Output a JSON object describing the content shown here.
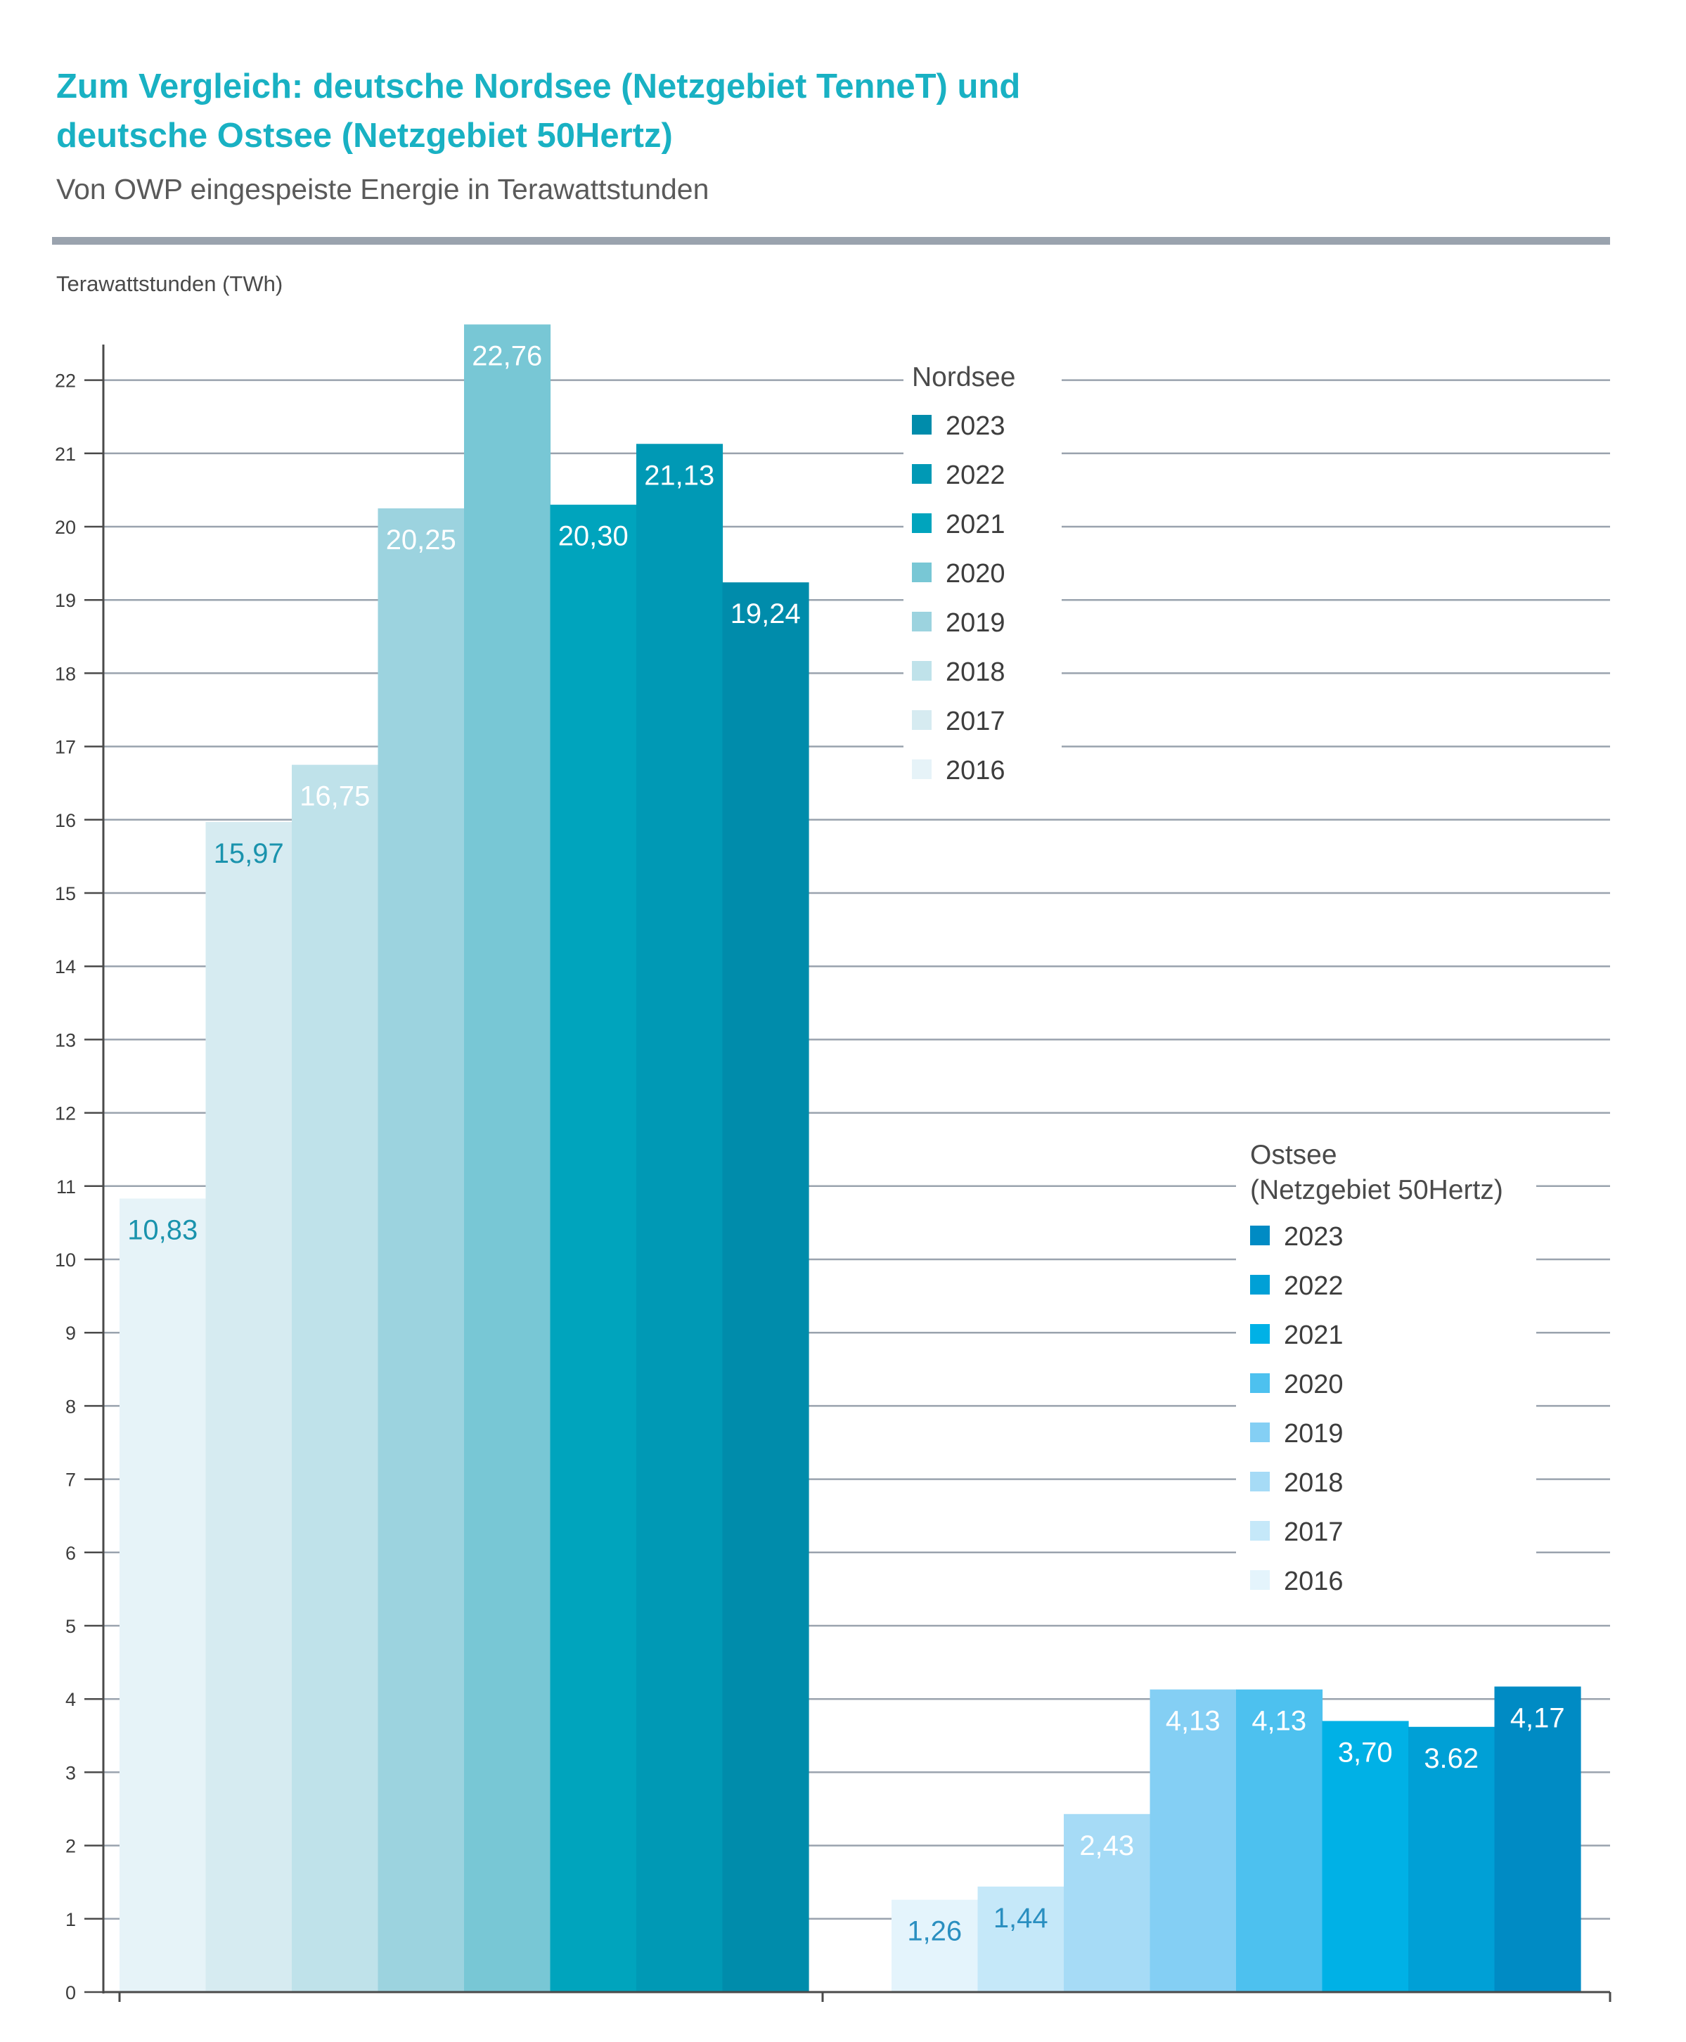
{
  "header": {
    "title_line1": "Zum Vergleich: deutsche Nordsee (Netzgebiet TenneT) und",
    "title_line2": "deutsche Ostsee (Netzgebiet 50Hertz)",
    "subtitle": "Von OWP eingespeiste Energie in Terawattstunden"
  },
  "chart_data": {
    "type": "bar",
    "ylabel": "Terawattstunden (TWh)",
    "ylim": [
      0,
      22
    ],
    "yticks": [
      "0",
      "1",
      "2",
      "3",
      "4",
      "5",
      "6",
      "7",
      "8",
      "9",
      "10",
      "11",
      "12",
      "13",
      "14",
      "15",
      "16",
      "17",
      "18",
      "19",
      "20",
      "21",
      "22"
    ],
    "grid": true,
    "groups": [
      {
        "legend_title": [
          "Nordsee"
        ],
        "legend_placement": "top-right",
        "categories": [
          "2016",
          "2017",
          "2018",
          "2019",
          "2020",
          "2021",
          "2022",
          "2023"
        ],
        "values": [
          10.83,
          15.97,
          16.75,
          20.25,
          22.76,
          20.3,
          21.13,
          19.24
        ],
        "labels": [
          "10,83",
          "15,97",
          "16,75",
          "20,25",
          "22,76",
          "20,30",
          "21,13",
          "19,24"
        ],
        "colors": [
          "#e6f3f8",
          "#d6ebf1",
          "#bfe2ea",
          "#9cd3df",
          "#78c7d5",
          "#00a4bd",
          "#0099b5",
          "#008cab"
        ],
        "label_colors": [
          "#1a93ad",
          "#1a93ad",
          "#ffffff",
          "#ffffff",
          "#ffffff",
          "#ffffff",
          "#ffffff",
          "#ffffff"
        ]
      },
      {
        "legend_title": [
          "Ostsee",
          "(Netzgebiet 50Hertz)"
        ],
        "legend_placement": "center-right",
        "categories": [
          "2016",
          "2017",
          "2018",
          "2019",
          "2020",
          "2021",
          "2022",
          "2023"
        ],
        "values": [
          1.26,
          1.44,
          2.43,
          4.13,
          4.13,
          3.7,
          3.62,
          4.17
        ],
        "labels": [
          "1,26",
          "1,44",
          "2,43",
          "4,13",
          "4,13",
          "3,70",
          "3.62",
          "4,17"
        ],
        "colors": [
          "#e4f4fc",
          "#c5e8f9",
          "#a6dbf6",
          "#84cff4",
          "#4dc1ef",
          "#00b1e6",
          "#00a0d6",
          "#008bc4"
        ],
        "label_colors": [
          "#2a8fc0",
          "#2a8fc0",
          "#ffffff",
          "#ffffff",
          "#ffffff",
          "#ffffff",
          "#ffffff",
          "#ffffff"
        ]
      }
    ]
  }
}
